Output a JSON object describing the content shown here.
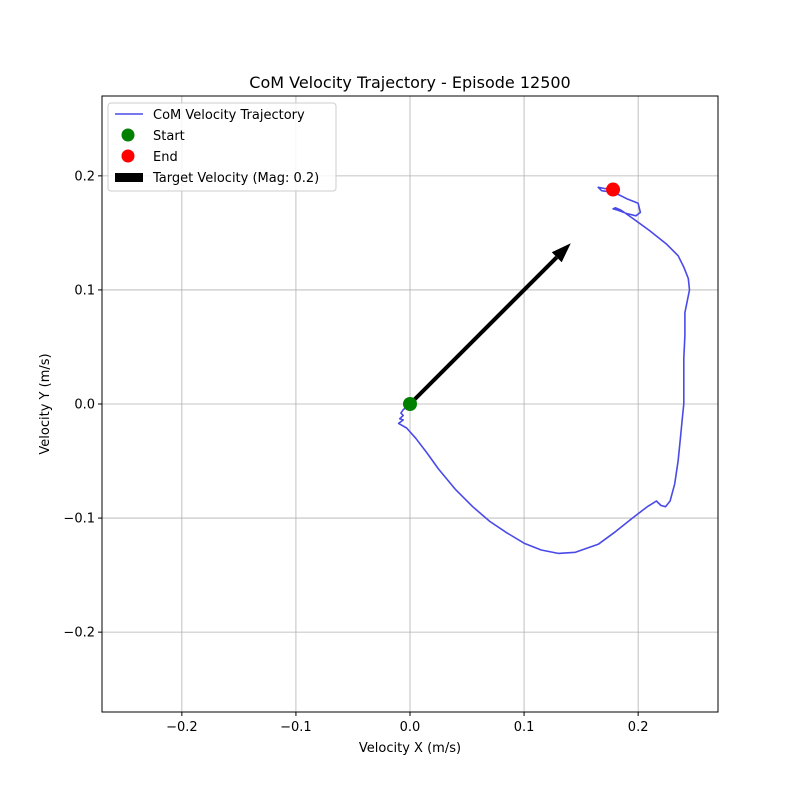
{
  "chart_data": {
    "type": "line",
    "title": "CoM Velocity Trajectory - Episode 12500",
    "xlabel": "Velocity X (m/s)",
    "ylabel": "Velocity Y (m/s)",
    "xlim": [
      -0.27,
      0.27
    ],
    "ylim": [
      -0.27,
      0.27
    ],
    "xticks": [
      -0.2,
      -0.1,
      0.0,
      0.1,
      0.2
    ],
    "yticks": [
      -0.2,
      -0.1,
      0.0,
      0.1,
      0.2
    ],
    "xtick_labels": [
      "−0.2",
      "−0.1",
      "0.0",
      "0.1",
      "0.2"
    ],
    "ytick_labels": [
      "−0.2",
      "−0.1",
      "0.0",
      "0.1",
      "0.2"
    ],
    "grid": true,
    "legend_position": "upper-left",
    "legend": [
      {
        "label": "CoM Velocity Trajectory",
        "kind": "line",
        "color": "#4a4ae8"
      },
      {
        "label": "Start",
        "kind": "marker",
        "color": "#008000"
      },
      {
        "label": "End",
        "kind": "marker",
        "color": "#ff0000"
      },
      {
        "label": "Target Velocity (Mag: 0.2)",
        "kind": "arrow",
        "color": "#000000"
      }
    ],
    "series": [
      {
        "name": "CoM Velocity Trajectory",
        "color": "#4a4ae8",
        "x": [
          0.0,
          -0.006,
          -0.008,
          -0.006,
          -0.009,
          -0.006,
          -0.01,
          -0.003,
          0.005,
          0.015,
          0.025,
          0.04,
          0.055,
          0.07,
          0.085,
          0.1,
          0.115,
          0.13,
          0.145,
          0.165,
          0.18,
          0.195,
          0.208,
          0.213,
          0.216,
          0.22,
          0.224,
          0.228,
          0.232,
          0.235,
          0.237,
          0.239,
          0.24,
          0.24,
          0.241,
          0.241,
          0.243,
          0.245,
          0.244,
          0.24,
          0.235,
          0.225,
          0.21,
          0.195,
          0.185,
          0.18,
          0.178,
          0.182,
          0.19,
          0.198,
          0.202,
          0.2,
          0.19,
          0.182,
          0.175,
          0.168,
          0.165,
          0.17,
          0.178
        ],
        "y": [
          0.0,
          -0.005,
          -0.008,
          -0.01,
          -0.013,
          -0.014,
          -0.017,
          -0.021,
          -0.03,
          -0.043,
          -0.057,
          -0.075,
          -0.09,
          -0.103,
          -0.113,
          -0.122,
          -0.128,
          -0.131,
          -0.13,
          -0.123,
          -0.112,
          -0.1,
          -0.09,
          -0.087,
          -0.085,
          -0.089,
          -0.09,
          -0.085,
          -0.07,
          -0.05,
          -0.03,
          -0.01,
          0.0,
          0.04,
          0.06,
          0.08,
          0.09,
          0.1,
          0.11,
          0.12,
          0.13,
          0.14,
          0.152,
          0.163,
          0.17,
          0.172,
          0.171,
          0.17,
          0.167,
          0.165,
          0.168,
          0.176,
          0.18,
          0.184,
          0.186,
          0.187,
          0.19,
          0.189,
          0.188
        ]
      }
    ],
    "start_point": {
      "x": 0.0,
      "y": 0.0,
      "label": "Start",
      "color": "#008000"
    },
    "end_point": {
      "x": 0.178,
      "y": 0.188,
      "label": "End",
      "color": "#ff0000"
    },
    "target_arrow": {
      "x0": 0.0,
      "y0": 0.0,
      "dx": 0.141,
      "dy": 0.141,
      "label": "Target Velocity (Mag: 0.2)",
      "color": "#000000"
    }
  }
}
